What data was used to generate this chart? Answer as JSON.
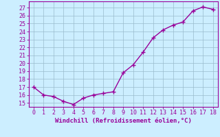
{
  "x": [
    0,
    1,
    2,
    3,
    4,
    5,
    6,
    7,
    8,
    9,
    10,
    11,
    12,
    13,
    14,
    15,
    16,
    17,
    18
  ],
  "y": [
    17.0,
    16.0,
    15.8,
    15.2,
    14.8,
    15.6,
    16.0,
    16.2,
    16.4,
    18.8,
    19.8,
    21.4,
    23.2,
    24.2,
    24.8,
    25.2,
    26.6,
    27.1,
    26.8
  ],
  "line_color": "#990099",
  "marker_style": "+",
  "marker_size": 4,
  "xlabel": "Windchill (Refroidissement éolien,°C)",
  "xlabel_fontsize": 6.5,
  "ylabel_ticks": [
    15,
    16,
    17,
    18,
    19,
    20,
    21,
    22,
    23,
    24,
    25,
    26,
    27
  ],
  "ylim": [
    14.5,
    27.8
  ],
  "xlim": [
    -0.5,
    18.5
  ],
  "background_color": "#cceeff",
  "grid_color": "#99bbcc",
  "tick_color": "#990099",
  "tick_fontsize": 6,
  "linewidth": 1.0
}
